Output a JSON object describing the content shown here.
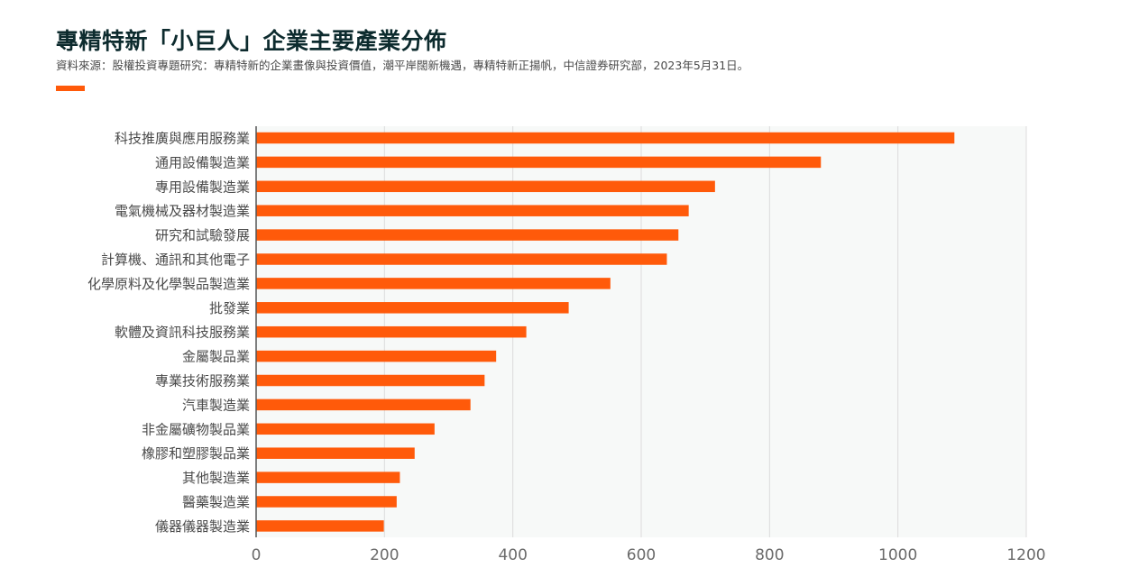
{
  "header": {
    "title": "專精特新「小巨人」企業主要產業分佈",
    "subtitle": "資料來源：股權投資專題研究：專精特新的企業畫像與投資價值，潮平岸闊新機遇，專精特新正揚帆，中信證券研究部，2023年5月31日。"
  },
  "colors": {
    "bar": "#ff5a0a",
    "plot_background": "#f7f9f8",
    "grid": "#dcdcdc",
    "axis": "#555555"
  },
  "chart_data": {
    "type": "bar",
    "orientation": "horizontal",
    "categories": [
      "科技推廣與應用服務業",
      "通用設備製造業",
      "專用設備製造業",
      "電氣機械及器材製造業",
      "研究和試驗發展",
      "計算機、通訊和其他電子",
      "化學原料及化學製品製造業",
      "批發業",
      "軟體及資訊科技服務業",
      "金屬製品業",
      "專業技術服務業",
      "汽車製造業",
      "非金屬礦物製品業",
      "橡膠和塑膠製品業",
      "其他製造業",
      "醫藥製造業",
      "儀器儀器製造業"
    ],
    "values": [
      1088,
      880,
      715,
      674,
      658,
      640,
      552,
      487,
      421,
      374,
      356,
      334,
      278,
      247,
      224,
      219,
      199
    ],
    "xlim": [
      0,
      1200
    ],
    "x_ticks": [
      0,
      200,
      400,
      600,
      800,
      1000,
      1200
    ],
    "grid": true,
    "legend": false
  }
}
